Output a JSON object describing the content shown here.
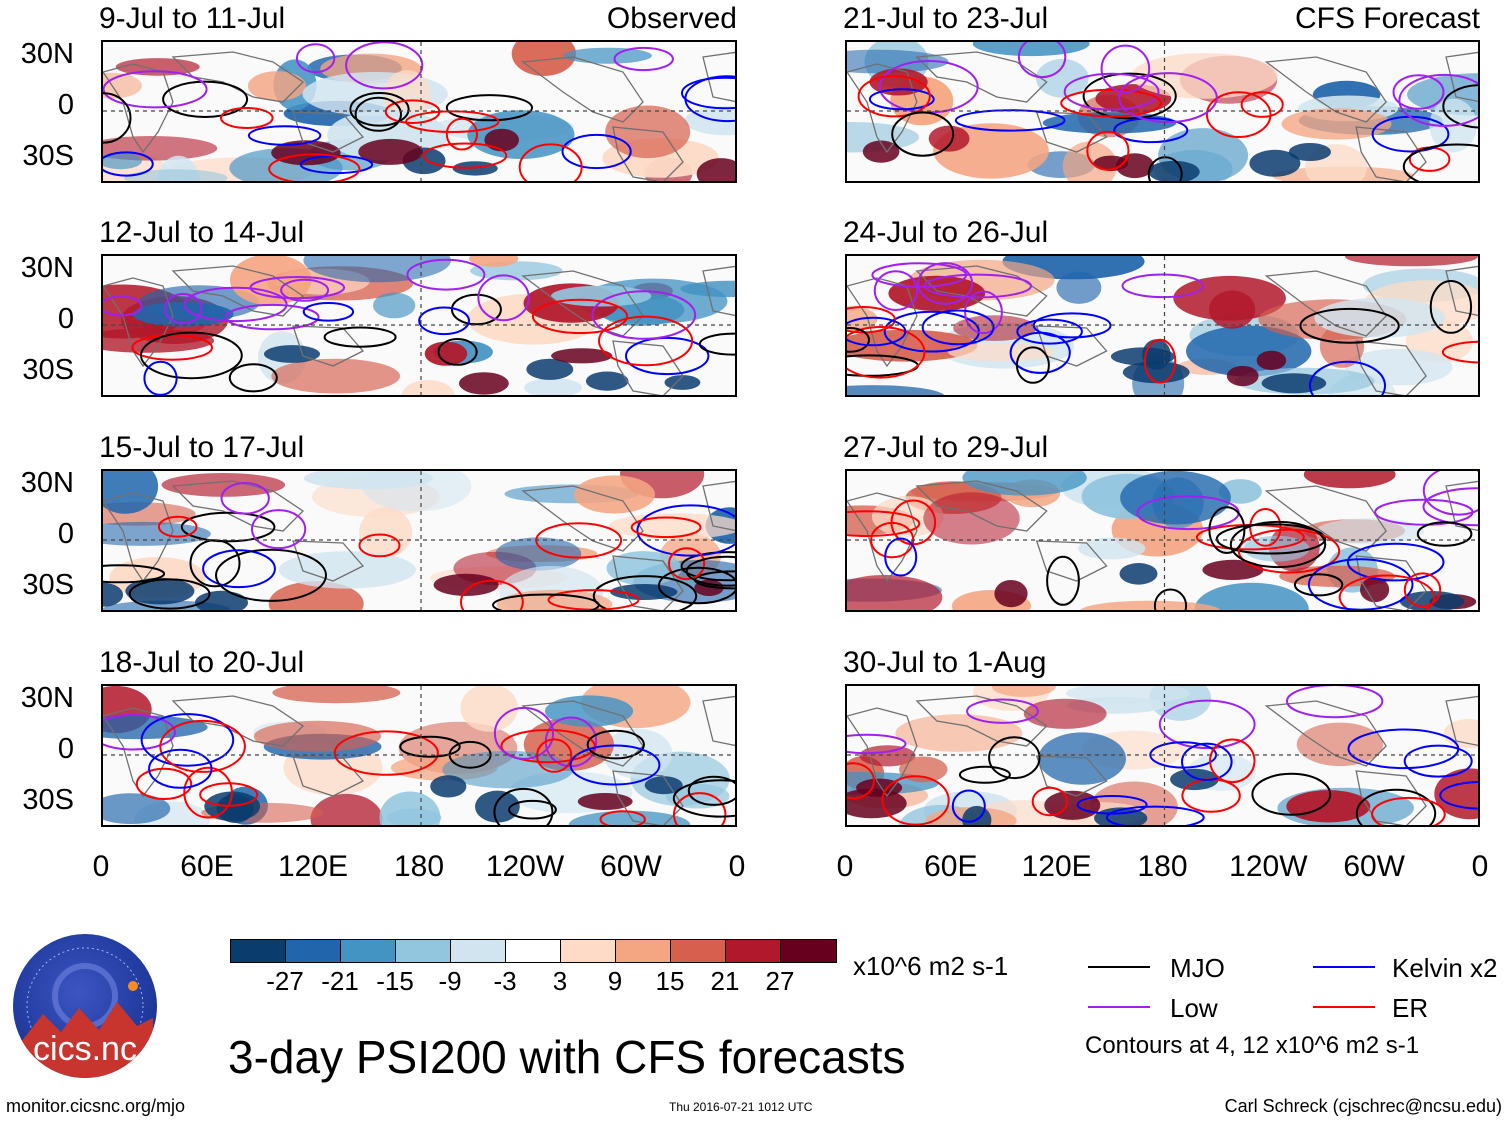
{
  "panels": [
    {
      "title": "9-Jul to 11-Jul",
      "label": "Observed"
    },
    {
      "title": "12-Jul to 14-Jul",
      "label": ""
    },
    {
      "title": "15-Jul to 17-Jul",
      "label": ""
    },
    {
      "title": "18-Jul to 20-Jul",
      "label": ""
    },
    {
      "title": "21-Jul to 23-Jul",
      "label": "CFS Forecast"
    },
    {
      "title": "24-Jul to 26-Jul",
      "label": ""
    },
    {
      "title": "27-Jul to 29-Jul",
      "label": ""
    },
    {
      "title": "30-Jul to 1-Aug",
      "label": ""
    }
  ],
  "lat_labels": [
    "30N",
    "0",
    "30S"
  ],
  "lon_labels": [
    "0",
    "60E",
    "120E",
    "180",
    "120W",
    "60W",
    "0"
  ],
  "colorbar": {
    "ticks": [
      "-27",
      "-21",
      "-15",
      "-9",
      "-3",
      "3",
      "9",
      "15",
      "21",
      "27"
    ],
    "colors": [
      "#0b3c6e",
      "#2166ac",
      "#4393c3",
      "#92c5de",
      "#d1e5f0",
      "#ffffff",
      "#fddbc7",
      "#f4a582",
      "#d6604d",
      "#b2182b",
      "#67001f"
    ],
    "units": "x10^6 m2 s-1"
  },
  "legend": [
    {
      "label": "MJO",
      "color": "#000000"
    },
    {
      "label": "Kelvin x2",
      "color": "#0000ff"
    },
    {
      "label": "Low",
      "color": "#a020f0"
    },
    {
      "label": "ER",
      "color": "#ff0000"
    }
  ],
  "contours_note": "Contours at 4, 12 x10^6 m2 s-1",
  "main_title": "3-day PSI200 with CFS forecasts",
  "logo": {
    "org": "cics.nc"
  },
  "footer": {
    "left": "monitor.cicsnc.org/mjo",
    "middle": "Thu 2016-07-21 1012 UTC",
    "right": "Carl Schreck (cjschrec@ncsu.edu)"
  }
}
